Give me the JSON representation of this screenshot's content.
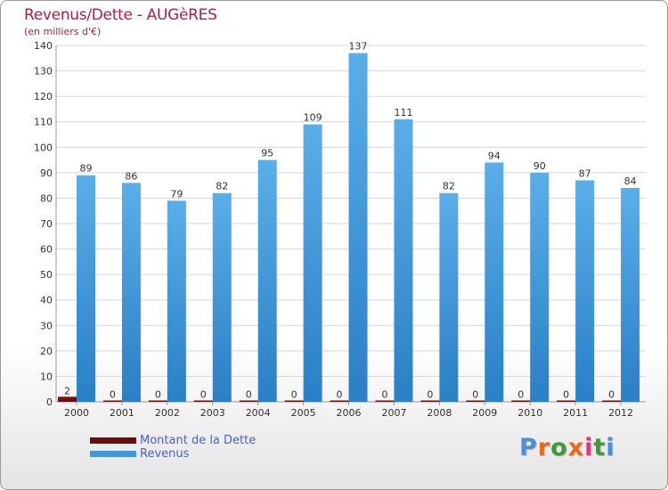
{
  "chart_data": {
    "type": "bar",
    "title": "Revenus/Dette - AUGèRES",
    "subtitle": "(en milliers d'€)",
    "categories": [
      "2000",
      "2001",
      "2002",
      "2003",
      "2004",
      "2005",
      "2006",
      "2007",
      "2008",
      "2009",
      "2010",
      "2011",
      "2012"
    ],
    "series": [
      {
        "name": "Montant de la Dette",
        "color": "#6b0d0d",
        "values": [
          2,
          0,
          0,
          0,
          0,
          0,
          0,
          0,
          0,
          0,
          0,
          0,
          0
        ]
      },
      {
        "name": "Revenus",
        "color": "#3f97dc",
        "values": [
          89,
          86,
          79,
          82,
          95,
          109,
          137,
          111,
          82,
          94,
          90,
          87,
          84
        ]
      }
    ],
    "ylim": [
      0,
      140
    ],
    "yticks": [
      0,
      10,
      20,
      30,
      40,
      50,
      60,
      70,
      80,
      90,
      100,
      110,
      120,
      130,
      140
    ],
    "grid": true,
    "legend_position": "bottom-left"
  },
  "logo": {
    "text": "Proxiti",
    "colors": [
      "#4b8fd6",
      "#e86a1e",
      "#3f9a3a",
      "#e86a1e",
      "#d93a86",
      "#3f9a3a",
      "#4b8fd6"
    ]
  }
}
